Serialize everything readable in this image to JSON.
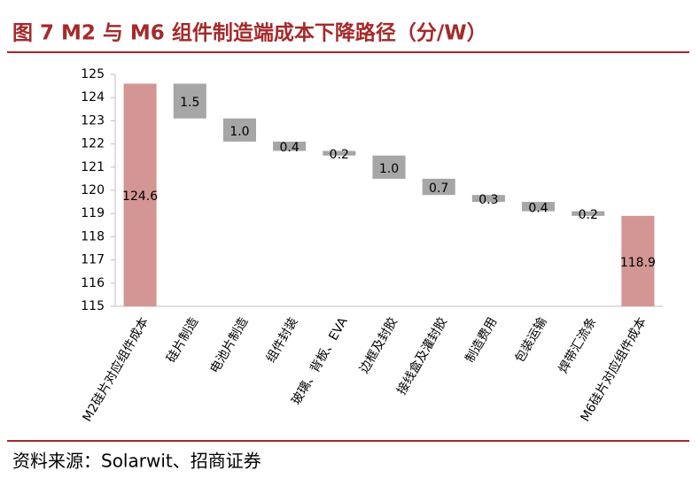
{
  "title": "图 7 M2 与 M6 组件制造端成本下降路径（分/W）",
  "source": "资料来源：Solarwit、招商证券",
  "chart_data": {
    "type": "waterfall",
    "categories": [
      "M2硅片对应组件成本",
      "硅片制造",
      "电池片制造",
      "组件封装",
      "玻璃、背板、EVA",
      "边框及封胶",
      "接线盒及灌封胶",
      "制造费用",
      "包装运输",
      "焊带汇流条",
      "M6硅片对应组件成本"
    ],
    "values": [
      124.6,
      1.5,
      1.0,
      0.4,
      0.2,
      1.0,
      0.7,
      0.3,
      0.4,
      0.2,
      118.9
    ],
    "value_labels": [
      "124.6",
      "1.5",
      "1.0",
      "0.4",
      "0.2",
      "1.0",
      "0.7",
      "0.3",
      "0.4",
      "0.2",
      "118.9"
    ],
    "total_color": "#d39694",
    "step_color": "#a6a6a6",
    "ylim": [
      115,
      125
    ],
    "yticks": [
      115,
      116,
      117,
      118,
      119,
      120,
      121,
      122,
      123,
      124,
      125
    ]
  }
}
